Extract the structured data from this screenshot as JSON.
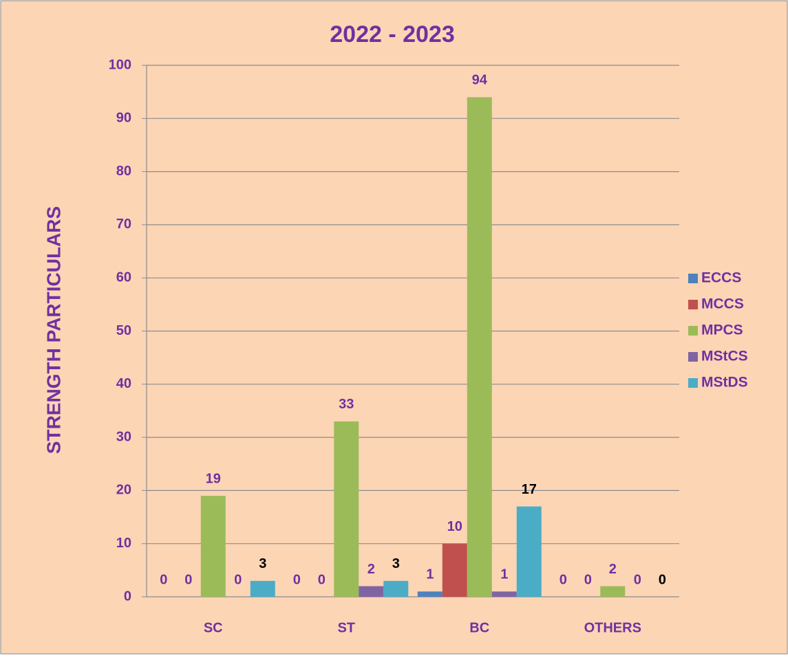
{
  "chart_data": {
    "type": "bar",
    "title": "2022 - 2023",
    "y_label": "STRENGTH PARTICULARS",
    "categories": [
      "SC",
      "ST",
      "BC",
      "OTHERS"
    ],
    "series": [
      {
        "name": "ECCS",
        "color": "#4f81bd",
        "label_color": "#7030a0",
        "values": [
          0,
          0,
          1,
          0
        ]
      },
      {
        "name": "MCCS",
        "color": "#c0504d",
        "label_color": "#7030a0",
        "values": [
          0,
          0,
          10,
          0
        ]
      },
      {
        "name": "MPCS",
        "color": "#9bbb59",
        "label_color": "#7030a0",
        "values": [
          19,
          33,
          94,
          2
        ]
      },
      {
        "name": "MStCS",
        "color": "#8064a2",
        "label_color": "#7030a0",
        "values": [
          0,
          2,
          1,
          0
        ]
      },
      {
        "name": "MStDS",
        "color": "#4bacc6",
        "label_color": "#000000",
        "values": [
          3,
          3,
          17,
          0
        ]
      }
    ],
    "ylim": [
      0,
      100
    ],
    "yticks": [
      0,
      10,
      20,
      30,
      40,
      50,
      60,
      70,
      80,
      90,
      100
    ],
    "grid": true,
    "legend": "right"
  }
}
